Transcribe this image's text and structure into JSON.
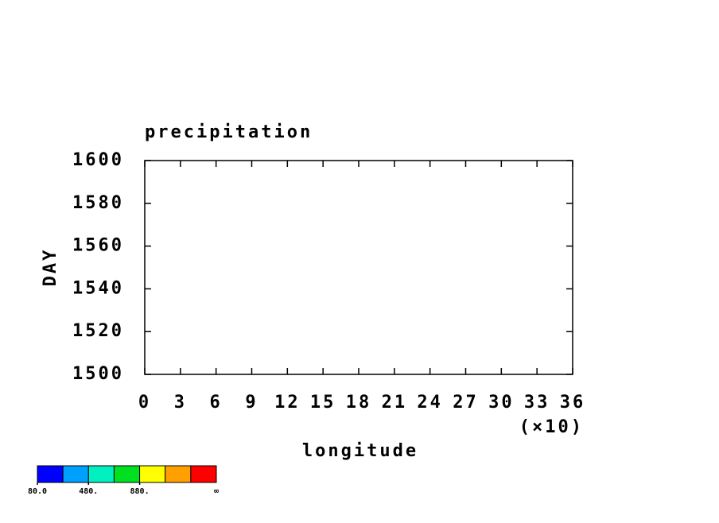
{
  "chart_data": {
    "type": "contour",
    "title": "precipitation",
    "xlabel": "longitude",
    "xmultiplier": "(×10)",
    "ylabel": "DAY",
    "xlim": [
      0,
      36
    ],
    "xticks": [
      0,
      3,
      6,
      9,
      12,
      15,
      18,
      21,
      24,
      27,
      30,
      33,
      36
    ],
    "ylim": [
      1500,
      1600
    ],
    "yticks": [
      1500,
      1520,
      1540,
      1560,
      1580,
      1600
    ],
    "colorbar": {
      "colors": [
        "#0000ff",
        "#00a0ff",
        "#00f0c0",
        "#00e020",
        "#ffff00",
        "#ffa000",
        "#ff0000"
      ],
      "lim": [
        80,
        1480
      ],
      "ticks": [
        {
          "value": 80,
          "label": "80.0"
        },
        {
          "value": 480,
          "label": "480."
        },
        {
          "value": 880,
          "label": "880."
        }
      ],
      "end_label": "∞"
    }
  }
}
